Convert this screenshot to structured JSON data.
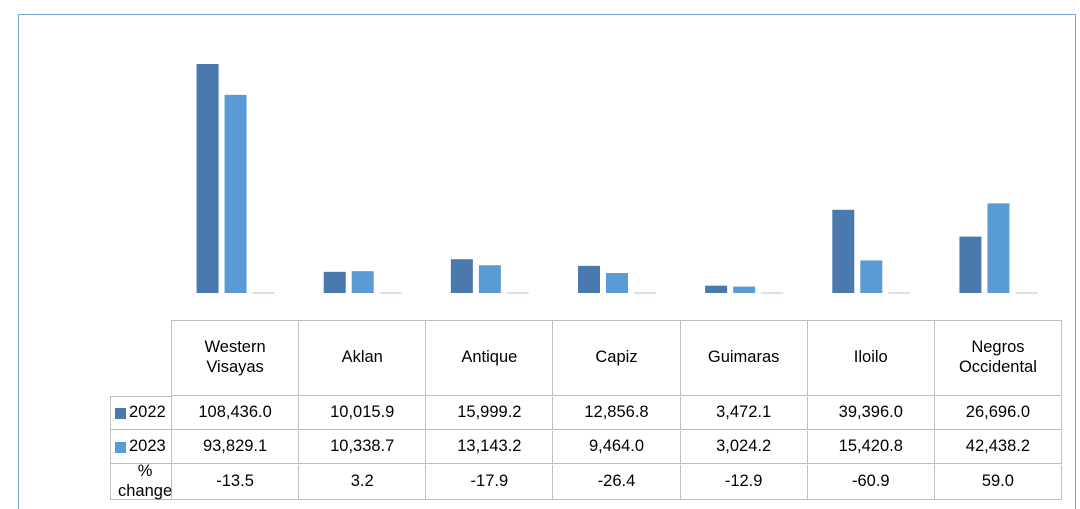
{
  "chart_data": {
    "type": "bar",
    "categories": [
      "Western Visayas",
      "Aklan",
      "Antique",
      "Capiz",
      "Guimaras",
      "Iloilo",
      "Negros Occidental"
    ],
    "series": [
      {
        "name": "2022",
        "color": "#4a7aad",
        "values": [
          108436.0,
          10015.9,
          15999.2,
          12856.8,
          3472.1,
          39396.0,
          26696.0
        ],
        "value_labels": [
          "108,436.0",
          "10,015.9",
          "15,999.2",
          "12,856.8",
          "3,472.1",
          "39,396.0",
          "26,696.0"
        ]
      },
      {
        "name": "2023",
        "color": "#5b9bd5",
        "values": [
          93829.1,
          10338.7,
          13143.2,
          9464.0,
          3024.2,
          15420.8,
          42438.2
        ],
        "value_labels": [
          "93,829.1",
          "10,338.7",
          "13,143.2",
          "9,464.0",
          "3,024.2",
          "15,420.8",
          "42,438.2"
        ]
      },
      {
        "name": "% change",
        "color": "#a9c4e4",
        "values": [
          -13.5,
          3.2,
          -17.9,
          -26.4,
          -12.9,
          -60.9,
          59.0
        ],
        "value_labels": [
          "-13.5",
          "3.2",
          "-17.9",
          "-26.4",
          "-12.9",
          "-60.9",
          "59.0"
        ]
      }
    ]
  }
}
